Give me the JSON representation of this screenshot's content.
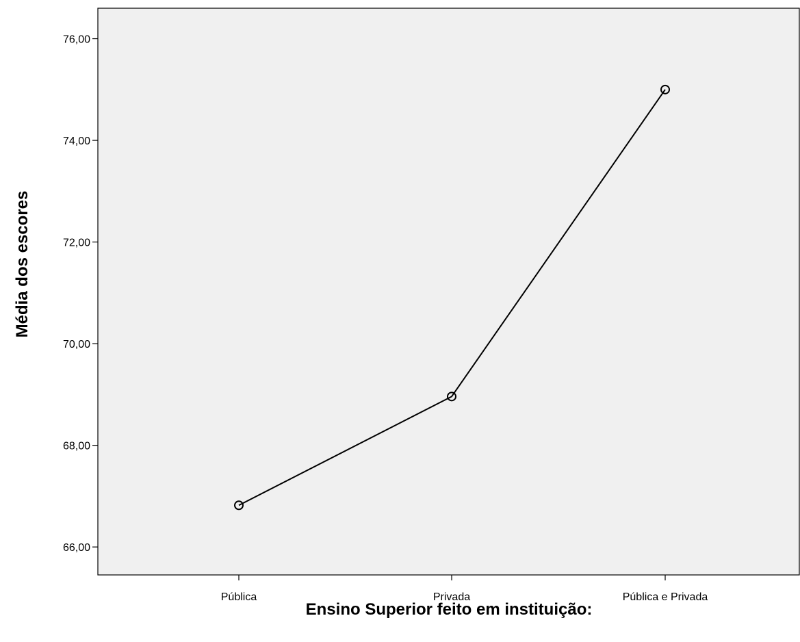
{
  "chart_data": {
    "type": "line",
    "title": "",
    "xlabel": "Ensino Superior feito em instituição:",
    "ylabel": "Média dos escores",
    "categories": [
      "Pública",
      "Privada",
      "Pública e Privada"
    ],
    "series": [
      {
        "values": [
          66.82,
          68.96,
          75.0
        ]
      }
    ],
    "ylim": [
      65.45,
      76.6
    ],
    "yticks": [
      66,
      68,
      70,
      72,
      74,
      76
    ],
    "ytick_labels": [
      "66,00",
      "68,00",
      "70,00",
      "72,00",
      "74,00",
      "76,00"
    ],
    "grid": false,
    "legend": "none",
    "marker": "open-circle",
    "colors": {
      "plot_background": "#f0f0f0",
      "line": "#000000",
      "axis": "#000000"
    }
  }
}
